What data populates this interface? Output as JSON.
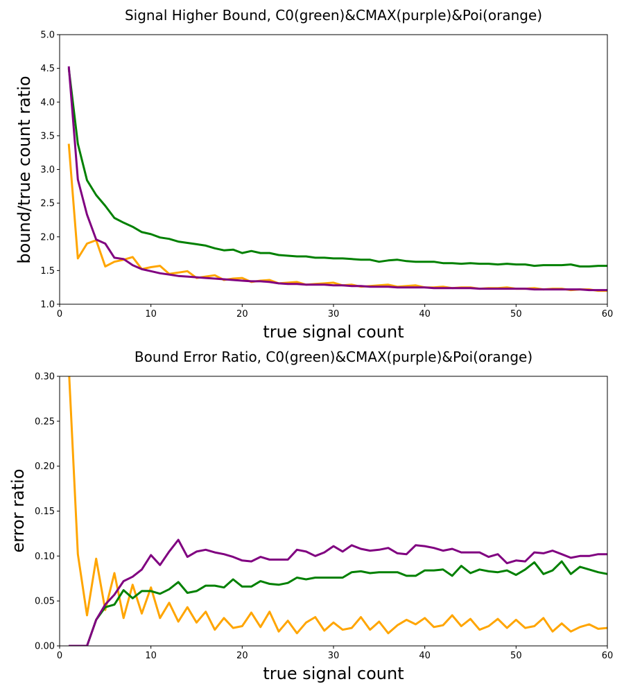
{
  "chart_data": [
    {
      "type": "line",
      "title": "Signal Higher Bound, C0(green)&CMAX(purple)&Poi(orange)",
      "xlabel": "true signal count",
      "ylabel": "bound/true count ratio",
      "xlim": [
        0,
        60
      ],
      "ylim": [
        1.0,
        5.0
      ],
      "xticks": [
        "0",
        "10",
        "20",
        "30",
        "40",
        "50",
        "60"
      ],
      "yticks": [
        "1.0",
        "1.5",
        "2.0",
        "2.5",
        "3.0",
        "3.5",
        "4.0",
        "4.5",
        "5.0"
      ],
      "grid": false,
      "x": [
        1,
        2,
        3,
        4,
        5,
        6,
        7,
        8,
        9,
        10,
        11,
        12,
        13,
        14,
        15,
        16,
        17,
        18,
        19,
        20,
        21,
        22,
        23,
        24,
        25,
        26,
        27,
        28,
        29,
        30,
        31,
        32,
        33,
        34,
        35,
        36,
        37,
        38,
        39,
        40,
        41,
        42,
        43,
        44,
        45,
        46,
        47,
        48,
        49,
        50,
        51,
        52,
        53,
        54,
        55,
        56,
        57,
        58,
        59,
        60
      ],
      "series": [
        {
          "color": "#ffa500",
          "values": [
            3.38,
            1.68,
            1.9,
            1.95,
            1.56,
            1.63,
            1.66,
            1.7,
            1.52,
            1.55,
            1.57,
            1.45,
            1.47,
            1.49,
            1.39,
            1.41,
            1.43,
            1.36,
            1.38,
            1.39,
            1.33,
            1.35,
            1.36,
            1.31,
            1.32,
            1.33,
            1.29,
            1.3,
            1.31,
            1.32,
            1.28,
            1.29,
            1.26,
            1.27,
            1.28,
            1.29,
            1.26,
            1.27,
            1.28,
            1.25,
            1.25,
            1.26,
            1.24,
            1.25,
            1.25,
            1.23,
            1.24,
            1.24,
            1.25,
            1.23,
            1.23,
            1.24,
            1.22,
            1.23,
            1.23,
            1.21,
            1.22,
            1.22,
            1.2,
            1.2
          ]
        },
        {
          "color": "#008000",
          "values": [
            4.5,
            3.38,
            2.84,
            2.62,
            2.46,
            2.28,
            2.21,
            2.15,
            2.07,
            2.04,
            1.99,
            1.97,
            1.93,
            1.91,
            1.89,
            1.87,
            1.83,
            1.8,
            1.81,
            1.76,
            1.79,
            1.76,
            1.76,
            1.73,
            1.72,
            1.71,
            1.71,
            1.69,
            1.69,
            1.68,
            1.68,
            1.67,
            1.66,
            1.66,
            1.63,
            1.65,
            1.66,
            1.64,
            1.63,
            1.63,
            1.63,
            1.61,
            1.61,
            1.6,
            1.61,
            1.6,
            1.6,
            1.59,
            1.6,
            1.59,
            1.59,
            1.57,
            1.58,
            1.58,
            1.58,
            1.59,
            1.56,
            1.56,
            1.57,
            1.57
          ]
        },
        {
          "color": "#800080",
          "values": [
            4.53,
            2.85,
            2.33,
            1.96,
            1.9,
            1.69,
            1.67,
            1.58,
            1.52,
            1.49,
            1.46,
            1.44,
            1.42,
            1.41,
            1.4,
            1.39,
            1.38,
            1.37,
            1.36,
            1.35,
            1.34,
            1.34,
            1.33,
            1.31,
            1.3,
            1.3,
            1.29,
            1.29,
            1.29,
            1.28,
            1.28,
            1.27,
            1.27,
            1.26,
            1.26,
            1.26,
            1.25,
            1.25,
            1.25,
            1.25,
            1.24,
            1.24,
            1.24,
            1.24,
            1.24,
            1.23,
            1.23,
            1.23,
            1.23,
            1.23,
            1.23,
            1.22,
            1.22,
            1.22,
            1.22,
            1.22,
            1.22,
            1.21,
            1.21,
            1.21
          ]
        }
      ]
    },
    {
      "type": "line",
      "title": "Bound Error Ratio, C0(green)&CMAX(purple)&Poi(orange)",
      "xlabel": "true signal count",
      "ylabel": "error ratio",
      "xlim": [
        0,
        60
      ],
      "ylim": [
        0.0,
        0.3
      ],
      "xticks": [
        "0",
        "10",
        "20",
        "30",
        "40",
        "50",
        "60"
      ],
      "yticks": [
        "0.00",
        "0.05",
        "0.10",
        "0.15",
        "0.20",
        "0.25",
        "0.30"
      ],
      "grid": false,
      "x": [
        1,
        2,
        3,
        4,
        5,
        6,
        7,
        8,
        9,
        10,
        11,
        12,
        13,
        14,
        15,
        16,
        17,
        18,
        19,
        20,
        21,
        22,
        23,
        24,
        25,
        26,
        27,
        28,
        29,
        30,
        31,
        32,
        33,
        34,
        35,
        36,
        37,
        38,
        39,
        40,
        41,
        42,
        43,
        44,
        45,
        46,
        47,
        48,
        49,
        50,
        51,
        52,
        53,
        54,
        55,
        56,
        57,
        58,
        59,
        60
      ],
      "series": [
        {
          "color": "#ffa500",
          "values": [
            0.31,
            0.102,
            0.034,
            0.097,
            0.04,
            0.081,
            0.031,
            0.068,
            0.036,
            0.065,
            0.031,
            0.048,
            0.027,
            0.043,
            0.026,
            0.038,
            0.018,
            0.031,
            0.02,
            0.022,
            0.037,
            0.021,
            0.038,
            0.016,
            0.028,
            0.014,
            0.026,
            0.032,
            0.017,
            0.026,
            0.018,
            0.02,
            0.032,
            0.018,
            0.027,
            0.014,
            0.023,
            0.029,
            0.024,
            0.031,
            0.021,
            0.023,
            0.034,
            0.022,
            0.03,
            0.018,
            0.022,
            0.03,
            0.02,
            0.029,
            0.02,
            0.022,
            0.031,
            0.016,
            0.025,
            0.016,
            0.021,
            0.024,
            0.019,
            0.02
          ]
        },
        {
          "color": "#008000",
          "values": [
            0.0,
            0.0,
            0.0,
            0.029,
            0.043,
            0.046,
            0.062,
            0.053,
            0.061,
            0.061,
            0.058,
            0.063,
            0.071,
            0.059,
            0.061,
            0.067,
            0.067,
            0.065,
            0.074,
            0.066,
            0.066,
            0.072,
            0.069,
            0.068,
            0.07,
            0.076,
            0.074,
            0.076,
            0.076,
            0.076,
            0.076,
            0.082,
            0.083,
            0.081,
            0.082,
            0.082,
            0.082,
            0.078,
            0.078,
            0.084,
            0.084,
            0.085,
            0.078,
            0.089,
            0.081,
            0.085,
            0.083,
            0.082,
            0.084,
            0.079,
            0.085,
            0.093,
            0.08,
            0.084,
            0.094,
            0.08,
            0.088,
            0.085,
            0.082,
            0.08
          ]
        },
        {
          "color": "#800080",
          "values": [
            0.0,
            0.0,
            0.0,
            0.029,
            0.046,
            0.057,
            0.072,
            0.077,
            0.085,
            0.101,
            0.09,
            0.105,
            0.118,
            0.099,
            0.105,
            0.107,
            0.104,
            0.102,
            0.099,
            0.095,
            0.094,
            0.099,
            0.096,
            0.096,
            0.096,
            0.107,
            0.105,
            0.1,
            0.104,
            0.111,
            0.105,
            0.112,
            0.108,
            0.106,
            0.107,
            0.109,
            0.103,
            0.102,
            0.112,
            0.111,
            0.109,
            0.106,
            0.108,
            0.104,
            0.104,
            0.104,
            0.099,
            0.102,
            0.092,
            0.095,
            0.094,
            0.104,
            0.103,
            0.106,
            0.102,
            0.098,
            0.1,
            0.1,
            0.102,
            0.102
          ]
        }
      ]
    }
  ]
}
